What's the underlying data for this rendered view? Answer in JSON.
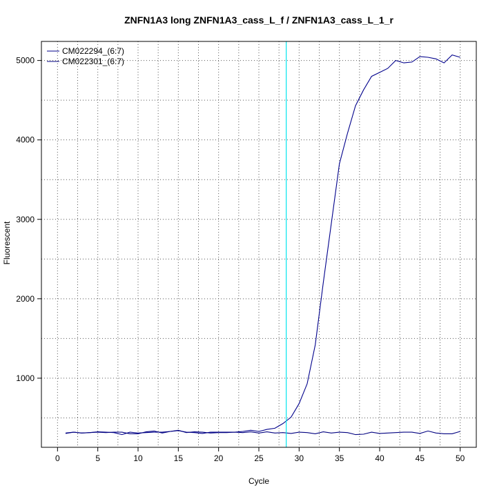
{
  "chart_data": {
    "type": "line",
    "title": "ZNFN1A3 long ZNFN1A3_cass_L_f / ZNFN1A3_cass_L_1_r",
    "xlabel": "Cycle",
    "ylabel": "Fluorescent",
    "xlim": [
      -2,
      52
    ],
    "ylim": [
      130,
      5240
    ],
    "xticks": [
      0,
      5,
      10,
      15,
      20,
      25,
      30,
      35,
      40,
      45,
      50
    ],
    "yticks": [
      1000,
      2000,
      3000,
      4000,
      5000
    ],
    "grid": true,
    "legend_position": "top-left",
    "threshold_x": 28.4,
    "threshold_color": "#00e5ee",
    "series": [
      {
        "name": "CM022294_(6:7)",
        "color": "#00008b",
        "x": [
          1,
          2,
          3,
          4,
          5,
          6,
          7,
          8,
          9,
          10,
          11,
          12,
          13,
          14,
          15,
          16,
          17,
          18,
          19,
          20,
          21,
          22,
          23,
          24,
          25,
          26,
          27,
          28,
          29,
          30,
          31,
          32,
          33,
          34,
          35,
          36,
          37,
          38,
          39,
          40,
          41,
          42,
          43,
          44,
          45,
          46,
          47,
          48,
          49,
          50
        ],
        "y": [
          310,
          320,
          310,
          315,
          325,
          320,
          315,
          290,
          320,
          310,
          315,
          320,
          320,
          330,
          340,
          320,
          315,
          305,
          320,
          320,
          320,
          320,
          330,
          345,
          330,
          355,
          370,
          430,
          510,
          680,
          930,
          1420,
          2200,
          2950,
          3700,
          4080,
          4430,
          4630,
          4800,
          4850,
          4900,
          5000,
          4970,
          4980,
          5050,
          5040,
          5020,
          4970,
          5070,
          5040
        ]
      },
      {
        "name": "CM022301_(6:7)",
        "color": "#000080",
        "x": [
          1,
          2,
          3,
          4,
          5,
          6,
          7,
          8,
          9,
          10,
          11,
          12,
          13,
          14,
          15,
          16,
          17,
          18,
          19,
          20,
          21,
          22,
          23,
          24,
          25,
          26,
          27,
          28,
          29,
          30,
          31,
          32,
          33,
          34,
          35,
          36,
          37,
          38,
          39,
          40,
          41,
          42,
          43,
          44,
          45,
          46,
          47,
          48,
          49,
          50
        ],
        "y": [
          305,
          320,
          310,
          315,
          320,
          315,
          320,
          320,
          300,
          300,
          325,
          335,
          310,
          330,
          345,
          315,
          325,
          320,
          310,
          315,
          315,
          320,
          315,
          325,
          310,
          325,
          310,
          315,
          305,
          320,
          315,
          300,
          325,
          310,
          320,
          315,
          290,
          295,
          320,
          305,
          310,
          315,
          320,
          320,
          305,
          335,
          310,
          300,
          300,
          330
        ]
      }
    ]
  }
}
